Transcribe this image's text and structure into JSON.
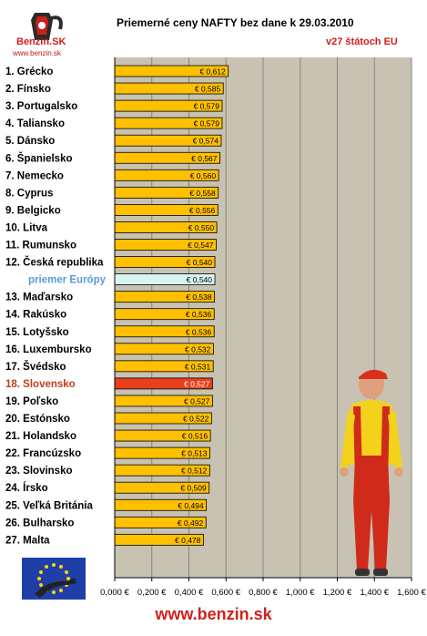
{
  "logo": {
    "brand": "Benzin.SK",
    "url": "www.benzin.sk"
  },
  "footer": {
    "url": "www.benzin.sk"
  },
  "colors": {
    "plot_bg": "#c8c2b2",
    "bar": "#ffc000",
    "bar_highlight": "#e8401c",
    "bar_average": "#d8f4f0",
    "label_text": "#000000",
    "label_highlight": "#c0401c",
    "label_average": "#5b9bd5",
    "accent_red": "#d0201a"
  },
  "chart_data": {
    "type": "bar",
    "orientation": "horizontal",
    "title": "Priemerné ceny NAFTY bez dane k 29.03.2010",
    "subtitle": "v27 štátoch EU",
    "xlim": [
      0,
      1.6
    ],
    "xticks": [
      "0,000 €",
      "0,200 €",
      "0,400 €",
      "0,600 €",
      "0,800 €",
      "1,000 €",
      "1,200 €",
      "1,400 €",
      "1,600 €"
    ],
    "grid": "vertical",
    "categories": [
      "1. Grécko",
      "2. Fínsko",
      "3. Portugalsko",
      "4. Taliansko",
      "5. Dánsko",
      "6. Španielsko",
      "7. Nemecko",
      "8. Cyprus",
      "9. Belgicko",
      "10. Litva",
      "11. Rumunsko",
      "12. Česká republika",
      "priemer Európy",
      "13. Maďarsko",
      "14. Rakúsko",
      "15. Lotyšsko",
      "16. Luxembursko",
      "17. Švédsko",
      "18. Slovensko",
      "19. Poľsko",
      "20. Estónsko",
      "21. Holandsko",
      "22. Francúzsko",
      "23. Slovinsko",
      "24. Írsko",
      "25. Veľká Británia",
      "26. Bulharsko",
      "27. Malta"
    ],
    "values": [
      0.612,
      0.585,
      0.579,
      0.579,
      0.574,
      0.567,
      0.56,
      0.558,
      0.556,
      0.55,
      0.547,
      0.54,
      0.54,
      0.538,
      0.536,
      0.536,
      0.532,
      0.531,
      0.527,
      0.527,
      0.522,
      0.516,
      0.513,
      0.512,
      0.509,
      0.494,
      0.492,
      0.478
    ],
    "value_labels": [
      "€ 0,612",
      "€ 0,585",
      "€ 0,579",
      "€ 0,579",
      "€ 0,574",
      "€ 0,567",
      "€ 0,560",
      "€ 0,558",
      "€ 0,556",
      "€ 0,550",
      "€ 0,547",
      "€ 0,540",
      "€ 0,540",
      "€ 0,538",
      "€ 0,536",
      "€ 0,536",
      "€ 0,532",
      "€ 0,531",
      "€ 0,527",
      "€ 0,527",
      "€ 0,522",
      "€ 0,516",
      "€ 0,513",
      "€ 0,512",
      "€ 0,509",
      "€ 0,494",
      "€ 0,492",
      "€ 0,478"
    ],
    "highlight_category": "18. Slovensko",
    "average_category": "priemer Európy"
  }
}
